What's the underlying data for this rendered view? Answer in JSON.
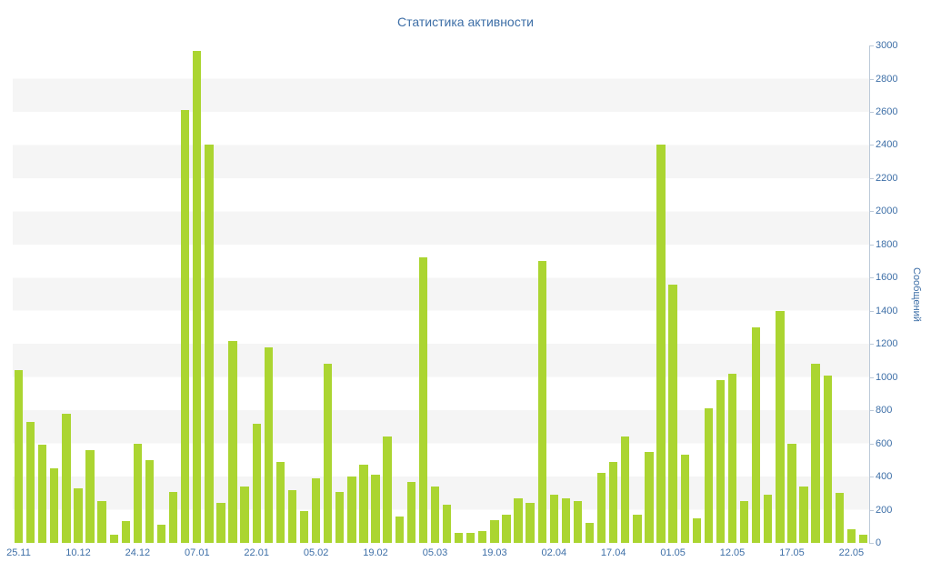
{
  "title": "Статистика активности",
  "colors": {
    "background": "#ffffff",
    "band_stripe": "#f5f5f5",
    "bar": "#abd531",
    "accent_text": "#3e6fa7",
    "axis_line": "#bcc9d8"
  },
  "chart_data": {
    "type": "bar",
    "title": "Статистика активности",
    "xlabel": "",
    "ylabel": "Сообщений",
    "ylim": [
      0,
      3000
    ],
    "y_ticks": [
      0,
      200,
      400,
      600,
      800,
      1000,
      1200,
      1400,
      1600,
      1800,
      2000,
      2200,
      2400,
      2600,
      2800,
      3000
    ],
    "x_tick_labels": [
      "25.11",
      "10.12",
      "24.12",
      "07.01",
      "22.01",
      "05.02",
      "19.02",
      "05.03",
      "19.03",
      "02.04",
      "17.04",
      "01.05",
      "12.05",
      "17.05",
      "22.05"
    ],
    "x_tick_bar_indices": [
      0,
      5,
      10,
      15,
      20,
      25,
      30,
      35,
      40,
      45,
      50,
      55,
      60,
      65,
      70
    ],
    "values": [
      1040,
      730,
      590,
      450,
      780,
      330,
      560,
      250,
      50,
      130,
      600,
      500,
      110,
      310,
      2610,
      2970,
      2400,
      240,
      1220,
      340,
      720,
      1180,
      490,
      320,
      190,
      390,
      1080,
      310,
      400,
      470,
      410,
      640,
      160,
      370,
      1720,
      340,
      230,
      60,
      60,
      70,
      140,
      170,
      270,
      240,
      1700,
      290,
      270,
      250,
      120,
      420,
      490,
      640,
      170,
      550,
      2400,
      1560,
      530,
      150,
      810,
      980,
      1020,
      250,
      1300,
      290,
      1400,
      600,
      340,
      1080,
      1010,
      300,
      80,
      50
    ],
    "grid": "horizontal-bands",
    "legend": "none"
  }
}
